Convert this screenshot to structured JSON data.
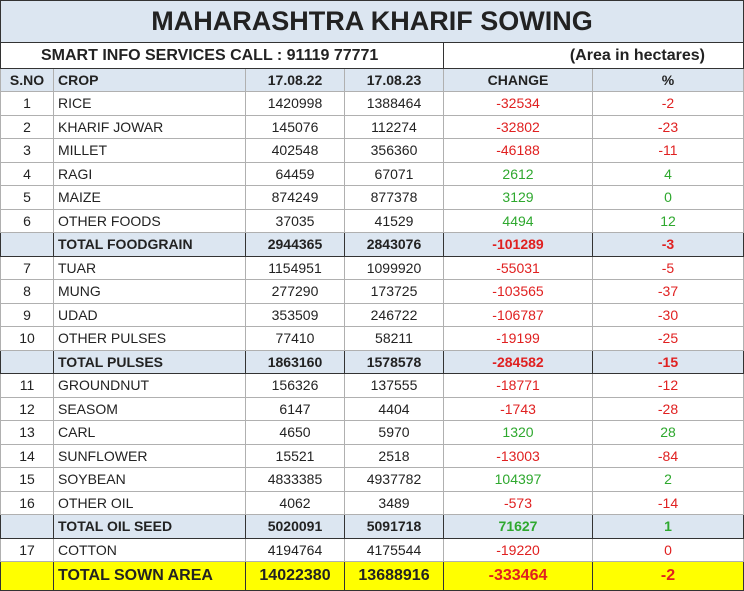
{
  "header": {
    "title": "MAHARASHTRA KHARIF SOWING",
    "info": "SMART INFO SERVICES CALL : 91119 77771",
    "unit": "(Area in hectares)"
  },
  "table": {
    "columns": [
      "S.NO",
      "CROP",
      "17.08.22",
      "17.08.23",
      "CHANGE",
      "%"
    ],
    "rows": [
      {
        "sno": 1,
        "crop": "RICE",
        "a": 1420998,
        "b": 1388464,
        "change": -32534,
        "pct": -2
      },
      {
        "sno": 2,
        "crop": "KHARIF JOWAR",
        "a": 145076,
        "b": 112274,
        "change": -32802,
        "pct": -23
      },
      {
        "sno": 3,
        "crop": "MILLET",
        "a": 402548,
        "b": 356360,
        "change": -46188,
        "pct": -11
      },
      {
        "sno": 4,
        "crop": "RAGI",
        "a": 64459,
        "b": 67071,
        "change": 2612,
        "pct": 4
      },
      {
        "sno": 5,
        "crop": "MAIZE",
        "a": 874249,
        "b": 877378,
        "change": 3129,
        "pct": 0
      },
      {
        "sno": 6,
        "crop": "OTHER FOODS",
        "a": 37035,
        "b": 41529,
        "change": 4494,
        "pct": 12
      },
      {
        "crop": "TOTAL FOODGRAIN",
        "a": 2944365,
        "b": 2843076,
        "change": -101289,
        "pct": -3
      },
      {
        "sno": 7,
        "crop": "TUAR",
        "a": 1154951,
        "b": 1099920,
        "change": -55031,
        "pct": -5
      },
      {
        "sno": 8,
        "crop": "MUNG",
        "a": 277290,
        "b": 173725,
        "change": -103565,
        "pct": -37
      },
      {
        "sno": 9,
        "crop": "UDAD",
        "a": 353509,
        "b": 246722,
        "change": -106787,
        "pct": -30
      },
      {
        "sno": 10,
        "crop": "OTHER PULSES",
        "a": 77410,
        "b": 58211,
        "change": -19199,
        "pct": -25
      },
      {
        "crop": "TOTAL PULSES",
        "a": 1863160,
        "b": 1578578,
        "change": -284582,
        "pct": -15
      },
      {
        "sno": 11,
        "crop": "GROUNDNUT",
        "a": 156326,
        "b": 137555,
        "change": -18771,
        "pct": -12
      },
      {
        "sno": 12,
        "crop": "SEASOM",
        "a": 6147,
        "b": 4404,
        "change": -1743,
        "pct": -28
      },
      {
        "sno": 13,
        "crop": "CARL",
        "a": 4650,
        "b": 5970,
        "change": 1320,
        "pct": 28
      },
      {
        "sno": 14,
        "crop": "SUNFLOWER",
        "a": 15521,
        "b": 2518,
        "change": -13003,
        "pct": -84
      },
      {
        "sno": 15,
        "crop": "SOYBEAN",
        "a": 4833385,
        "b": 4937782,
        "change": 104397,
        "pct": 2
      },
      {
        "sno": 16,
        "crop": "OTHER OIL",
        "a": 4062,
        "b": 3489,
        "change": -573,
        "pct": -14
      },
      {
        "crop": "TOTAL OIL SEED",
        "a": 5020091,
        "b": 5091718,
        "change": 71627,
        "pct": 1
      },
      {
        "sno": 17,
        "crop": "COTTON",
        "a": 4194764,
        "b": 4175544,
        "change": -19220,
        "pct": 0
      },
      {
        "crop": "TOTAL SOWN AREA",
        "a": 14022380,
        "b": 13688916,
        "change": -333464,
        "pct": -2
      }
    ]
  }
}
